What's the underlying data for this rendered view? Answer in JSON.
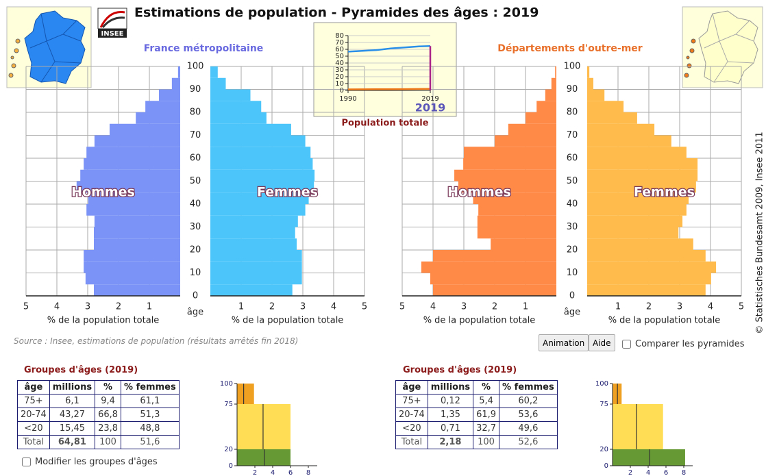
{
  "header": {
    "title": "Estimations de population - Pyramides des âges : 2019",
    "logo": "INSEE"
  },
  "copyright": "© Statistisches Bundesamt 2009, Insee 2011",
  "population_chart": {
    "type": "line",
    "caption": "Population totale",
    "current_year": 2019,
    "x": [
      1990,
      1995,
      2000,
      2005,
      2010,
      2015,
      2019
    ],
    "xlim": [
      1990,
      2019
    ],
    "xticks": [
      1990,
      2019
    ],
    "ylim": [
      0,
      80
    ],
    "yticks": [
      0,
      10,
      20,
      30,
      40,
      50,
      60,
      70,
      80
    ],
    "series": [
      {
        "color": "#2a8fe8",
        "values": [
          56.6,
          57.8,
          58.9,
          61.2,
          62.8,
          64.3,
          64.8
        ]
      },
      {
        "color": "#f07a1a",
        "values": [
          1.5,
          1.6,
          1.7,
          1.8,
          1.9,
          2.1,
          2.2
        ]
      }
    ]
  },
  "pyramids": [
    {
      "type": "bar",
      "title": "France métropolitaine",
      "title_color": "#6a6ae0",
      "age_label": "âge",
      "x_label": "% de la population totale",
      "ylim": [
        0,
        100
      ],
      "age_ticks": [
        0,
        10,
        20,
        30,
        40,
        50,
        60,
        70,
        80,
        90,
        100
      ],
      "series": [
        {
          "name": "Hommes",
          "color": "#7b92f6",
          "xlim": [
            0,
            5
          ],
          "xticks": [
            5,
            4,
            3,
            2,
            1
          ],
          "values": [
            2.8,
            3.07,
            3.13,
            3.13,
            2.8,
            2.8,
            2.78,
            3.04,
            2.98,
            3.36,
            3.24,
            3.13,
            3.04,
            2.78,
            2.29,
            1.44,
            1.13,
            0.69,
            0.27,
            0.07
          ]
        },
        {
          "name": "Femmes",
          "color": "#4cc5fa",
          "xlim": [
            0,
            5
          ],
          "xticks": [
            1,
            2,
            3,
            4,
            5
          ],
          "values": [
            2.66,
            2.97,
            2.97,
            2.97,
            2.8,
            2.75,
            2.84,
            3.08,
            3.19,
            3.36,
            3.38,
            3.32,
            3.25,
            3.08,
            2.62,
            1.82,
            1.65,
            1.3,
            0.5,
            0.24
          ]
        }
      ]
    },
    {
      "type": "bar",
      "title": "Départements d'outre-mer",
      "title_color": "#e8702a",
      "age_label": "âge",
      "x_label": "% de la population totale",
      "ylim": [
        0,
        100
      ],
      "age_ticks": [
        0,
        10,
        20,
        30,
        40,
        50,
        60,
        70,
        80,
        90,
        100
      ],
      "series": [
        {
          "name": "Hommes",
          "color": "#ff8a48",
          "xlim": [
            0,
            5
          ],
          "xticks": [
            5,
            4,
            3,
            2,
            1
          ],
          "values": [
            4.0,
            4.09,
            4.38,
            4.0,
            2.13,
            2.56,
            2.56,
            2.53,
            2.7,
            3.18,
            3.31,
            3.02,
            3.0,
            2.0,
            1.56,
            1.0,
            0.64,
            0.36,
            0.16,
            0.04
          ]
        },
        {
          "name": "Femmes",
          "color": "#ffbb4c",
          "xlim": [
            0,
            5
          ],
          "xticks": [
            1,
            2,
            3,
            4,
            5
          ],
          "values": [
            3.84,
            4.02,
            4.18,
            3.84,
            3.44,
            2.96,
            3.09,
            3.22,
            3.29,
            3.53,
            3.58,
            3.58,
            3.22,
            2.73,
            2.18,
            1.62,
            1.18,
            0.56,
            0.2,
            0.07
          ]
        }
      ]
    }
  ],
  "source": "Source : Insee, estimations de population (résultats arrêtés fin 2018)",
  "buttons": [
    "Animation",
    "Aide"
  ],
  "compare_label": "Comparer les pyramides",
  "modify_label": "Modifier les groupes d'âges",
  "tables": [
    {
      "title": "Groupes d'âges (2019)",
      "header": [
        "âge",
        "millions",
        "%",
        "% femmes"
      ],
      "rows": [
        [
          "75+",
          "6,1",
          "9,4",
          "61,1"
        ],
        [
          "20-74",
          "43,27",
          "66,8",
          "51,3"
        ],
        [
          "<20",
          "15,45",
          "23,8",
          "48,8"
        ],
        [
          "Total",
          "64,81",
          "100",
          "51,6"
        ]
      ]
    },
    {
      "title": "Groupes d'âges (2019)",
      "header": [
        "âge",
        "millions",
        "%",
        "% femmes"
      ],
      "rows": [
        [
          "75+",
          "0,12",
          "5,4",
          "60,2"
        ],
        [
          "20-74",
          "1,35",
          "61,9",
          "53,6"
        ],
        [
          "<20",
          "0,71",
          "32,7",
          "49,6"
        ],
        [
          "Total",
          "2,18",
          "100",
          "52,6"
        ]
      ]
    }
  ],
  "group_charts": [
    {
      "type": "bar",
      "ylim": [
        0,
        100
      ],
      "yticks": [
        0,
        20,
        75,
        100
      ],
      "xlim": [
        0,
        9
      ],
      "xticks": [
        2,
        4,
        6,
        8
      ],
      "colors": [
        "#669933",
        "#ffdd55",
        "#f0a020"
      ],
      "values": [
        6.0,
        6.0,
        1.9
      ],
      "men": [
        3.07,
        2.92,
        0.74
      ]
    },
    {
      "type": "bar",
      "ylim": [
        0,
        100
      ],
      "yticks": [
        0,
        20,
        75,
        100
      ],
      "xlim": [
        0,
        9
      ],
      "xticks": [
        2,
        4,
        6,
        8
      ],
      "colors": [
        "#669933",
        "#ffdd55",
        "#f0a020"
      ],
      "values": [
        8.15,
        5.67,
        1.02
      ],
      "men": [
        4.17,
        2.68,
        0.55
      ]
    }
  ]
}
